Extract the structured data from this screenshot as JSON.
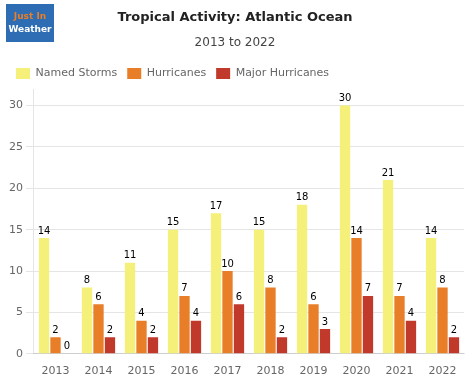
{
  "chart_data": {
    "type": "bar",
    "title": "Tropical Activity: Atlantic Ocean",
    "subtitle": "2013 to 2022",
    "annotations": [
      "Just In",
      "Weather"
    ],
    "categories": [
      "2013",
      "2014",
      "2015",
      "2016",
      "2017",
      "2018",
      "2019",
      "2020",
      "2021",
      "2022"
    ],
    "series": [
      {
        "name": "Named Storms",
        "color": "#f5f07a",
        "values": [
          14,
          8,
          11,
          15,
          17,
          15,
          18,
          30,
          21,
          14
        ]
      },
      {
        "name": "Hurricanes",
        "color": "#e87e27",
        "values": [
          2,
          6,
          4,
          7,
          10,
          8,
          6,
          14,
          7,
          8
        ]
      },
      {
        "name": "Major Hurricanes",
        "color": "#c0392b",
        "values": [
          0,
          2,
          2,
          4,
          6,
          2,
          3,
          7,
          4,
          2
        ]
      }
    ],
    "ylim": [
      0,
      32
    ],
    "yticks": [
      0,
      5,
      10,
      15,
      20,
      25,
      30
    ],
    "grid": true,
    "legend": "top",
    "data_labels": true
  }
}
